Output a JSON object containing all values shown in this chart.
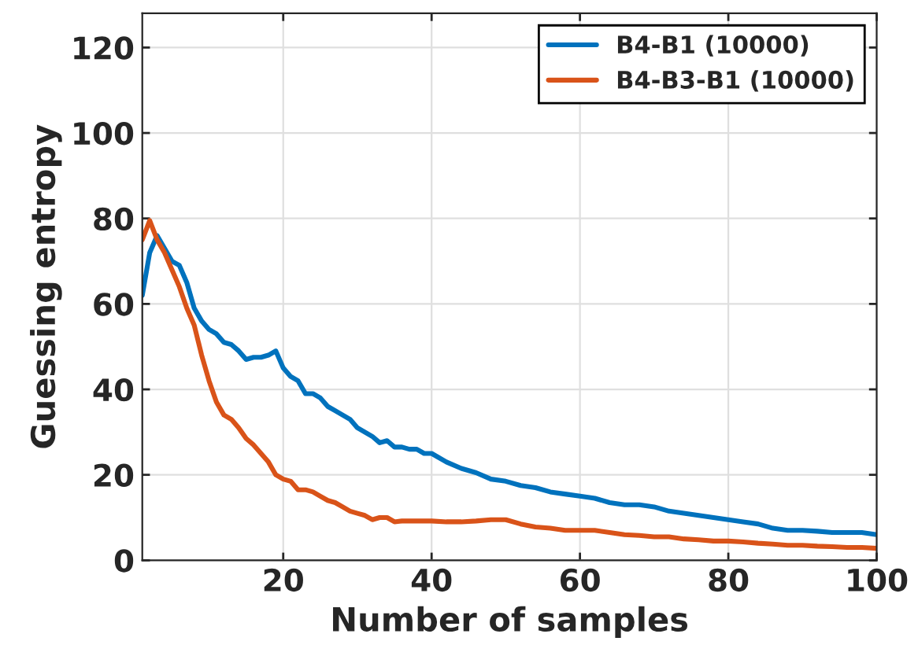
{
  "chart_data": {
    "type": "line",
    "xlabel": "Number of samples",
    "ylabel": "Guessing entropy",
    "xlim": [
      1,
      100
    ],
    "xticks": [
      20,
      40,
      60,
      80,
      100
    ],
    "ylim": [
      0,
      128
    ],
    "yticks": [
      0,
      20,
      40,
      60,
      80,
      100,
      120
    ],
    "grid": true,
    "legend": "top right",
    "line_style": "solid",
    "series": [
      {
        "name": "B4-B1 (10000)",
        "color": "#0072bd",
        "x": [
          1,
          2,
          3,
          4,
          5,
          6,
          7,
          8,
          9,
          10,
          11,
          12,
          13,
          14,
          15,
          16,
          17,
          18,
          19,
          20,
          21,
          22,
          23,
          24,
          25,
          26,
          27,
          28,
          29,
          30,
          31,
          32,
          33,
          34,
          35,
          36,
          37,
          38,
          39,
          40,
          42,
          44,
          46,
          48,
          50,
          52,
          54,
          56,
          58,
          60,
          62,
          64,
          66,
          68,
          70,
          72,
          74,
          76,
          78,
          80,
          82,
          84,
          86,
          88,
          90,
          92,
          94,
          96,
          98,
          100
        ],
        "values": [
          62,
          72,
          76,
          73,
          70,
          69,
          65,
          59,
          56,
          54,
          53,
          51,
          50.5,
          49,
          47,
          47.5,
          47.5,
          48,
          49,
          45,
          43,
          42,
          39,
          39,
          38,
          36,
          35,
          34,
          33,
          31,
          30,
          29,
          27.5,
          28,
          26.5,
          26.5,
          26,
          26,
          25,
          25,
          23,
          21.5,
          20.5,
          19,
          18.5,
          17.5,
          17,
          16,
          15.5,
          15,
          14.5,
          13.5,
          13,
          13,
          12.5,
          11.5,
          11,
          10.5,
          10,
          9.5,
          9,
          8.5,
          7.5,
          7,
          7,
          6.8,
          6.5,
          6.5,
          6.5,
          6
        ]
      },
      {
        "name": "B4-B3-B1 (10000)",
        "color": "#d95319",
        "x": [
          1,
          2,
          3,
          4,
          5,
          6,
          7,
          8,
          9,
          10,
          11,
          12,
          13,
          14,
          15,
          16,
          17,
          18,
          19,
          20,
          21,
          22,
          23,
          24,
          25,
          26,
          27,
          28,
          29,
          30,
          31,
          32,
          33,
          34,
          35,
          36,
          38,
          40,
          42,
          44,
          46,
          48,
          50,
          52,
          54,
          56,
          58,
          60,
          62,
          64,
          66,
          68,
          70,
          72,
          74,
          76,
          78,
          80,
          82,
          84,
          86,
          88,
          90,
          92,
          94,
          96,
          98,
          100
        ],
        "values": [
          75,
          79.5,
          75,
          72,
          68,
          64,
          59,
          55,
          48,
          42,
          37,
          34,
          33,
          31,
          28.5,
          27,
          25,
          23,
          20,
          19,
          18.5,
          16.5,
          16.5,
          16,
          15,
          14,
          13.5,
          12.5,
          11.5,
          11,
          10.5,
          9.5,
          10,
          10,
          9,
          9.2,
          9.2,
          9.2,
          9,
          9,
          9.2,
          9.5,
          9.5,
          8.5,
          7.8,
          7.5,
          7,
          7,
          7,
          6.5,
          6,
          5.8,
          5.5,
          5.5,
          5,
          4.8,
          4.5,
          4.5,
          4.3,
          4,
          3.8,
          3.5,
          3.5,
          3.3,
          3.2,
          3,
          3,
          2.8
        ]
      }
    ]
  }
}
